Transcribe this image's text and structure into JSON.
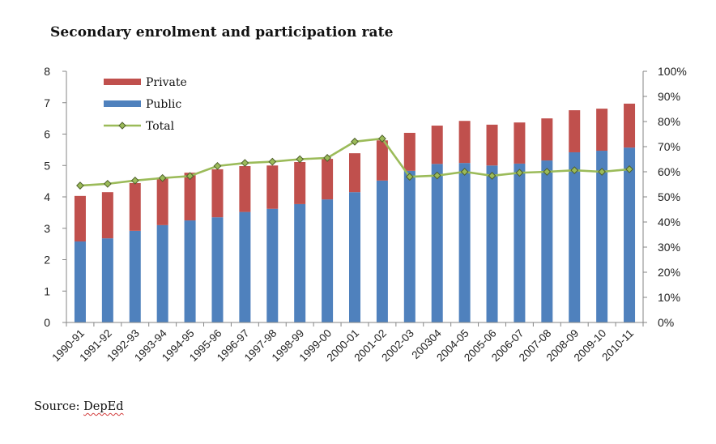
{
  "chart_data": {
    "type": "bar",
    "subtype": "stacked-bar-with-line",
    "title": "Secondary enrolment and participation rate",
    "source_prefix": "Source: ",
    "source_name": "DepEd",
    "categories": [
      "1990-91",
      "1991-92",
      "1992-93",
      "1993-94",
      "1994-95",
      "1995-96",
      "1996-97",
      "1997-98",
      "1998-99",
      "1999-00",
      "2000-01",
      "2001-02",
      "2002-03",
      "200304",
      "2004-05",
      "2005-06",
      "2006-07",
      "2007-08",
      "2008-09",
      "2009-10",
      "2010-11"
    ],
    "series": [
      {
        "name": "Public",
        "type": "bar",
        "axis": "left",
        "color": "#4F81BD",
        "values": [
          2.58,
          2.68,
          2.92,
          3.1,
          3.25,
          3.35,
          3.52,
          3.62,
          3.77,
          3.92,
          4.15,
          4.52,
          4.83,
          5.05,
          5.08,
          5.0,
          5.06,
          5.16,
          5.42,
          5.47,
          5.57
        ]
      },
      {
        "name": "Private",
        "type": "bar",
        "axis": "left",
        "color": "#C0504D",
        "values": [
          1.45,
          1.47,
          1.52,
          1.52,
          1.52,
          1.53,
          1.46,
          1.38,
          1.34,
          1.29,
          1.24,
          1.28,
          1.21,
          1.22,
          1.34,
          1.3,
          1.31,
          1.34,
          1.34,
          1.34,
          1.4
        ]
      },
      {
        "name": "Total",
        "type": "line",
        "axis": "right",
        "color": "#9BBB59",
        "marker": "diamond",
        "values": [
          0.545,
          0.552,
          0.565,
          0.575,
          0.583,
          0.623,
          0.635,
          0.64,
          0.65,
          0.655,
          0.72,
          0.732,
          0.58,
          0.585,
          0.6,
          0.584,
          0.596,
          0.6,
          0.606,
          0.6,
          0.61
        ]
      }
    ],
    "legend": {
      "position": "top-left",
      "entries": [
        {
          "label": "Private",
          "kind": "bar",
          "color": "#C0504D"
        },
        {
          "label": "Public",
          "kind": "bar",
          "color": "#4F81BD"
        },
        {
          "label": "Total",
          "kind": "line",
          "color": "#9BBB59"
        }
      ]
    },
    "y_left": {
      "ylim": [
        0,
        8
      ],
      "ticks": [
        0,
        1,
        2,
        3,
        4,
        5,
        6,
        7,
        8
      ],
      "tick_labels": [
        "0",
        "1",
        "2",
        "3",
        "4",
        "5",
        "6",
        "7",
        "8"
      ]
    },
    "y_right": {
      "ylim": [
        0,
        1
      ],
      "ticks": [
        0,
        0.1,
        0.2,
        0.3,
        0.4,
        0.5,
        0.6,
        0.7,
        0.8,
        0.9,
        1.0
      ],
      "tick_labels": [
        "0%",
        "10%",
        "20%",
        "30%",
        "40%",
        "50%",
        "60%",
        "70%",
        "80%",
        "90%",
        "100%"
      ]
    },
    "xlabel": "",
    "ylabel": "",
    "grid": false,
    "colors": {
      "axis": "#868686",
      "marker_edge": "#4E5F2B",
      "marker_fill": "#9BBB59"
    }
  }
}
